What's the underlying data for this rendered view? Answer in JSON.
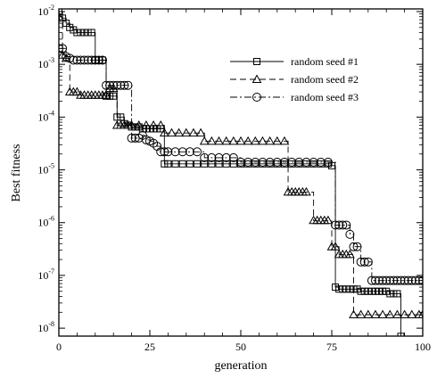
{
  "chart_data": {
    "type": "line",
    "xlabel": "generation",
    "ylabel": "Best fitness",
    "xlim": [
      0,
      100
    ],
    "ylim_log10": [
      -8.15,
      -1.95
    ],
    "y_scale": "log",
    "x_ticks": [
      0,
      25,
      50,
      75,
      100
    ],
    "x_tick_labels": [
      "0",
      "25",
      "50",
      "75",
      "100"
    ],
    "y_ticks_exponent": [
      -8,
      -7,
      -6,
      -5,
      -4,
      -3,
      -2
    ],
    "y_tick_labels": [
      {
        "base": "10",
        "exp": "-8"
      },
      {
        "base": "10",
        "exp": "-7"
      },
      {
        "base": "10",
        "exp": "-6"
      },
      {
        "base": "10",
        "exp": "-5"
      },
      {
        "base": "10",
        "exp": "-4"
      },
      {
        "base": "10",
        "exp": "-3"
      },
      {
        "base": "10",
        "exp": "-2"
      }
    ],
    "legend_position": "top-right",
    "series": [
      {
        "name": "random seed #1",
        "marker": "square",
        "dash": "solid",
        "points": [
          [
            0,
            0.01
          ],
          [
            1,
            0.0075
          ],
          [
            2,
            0.006
          ],
          [
            3,
            0.005
          ],
          [
            4,
            0.0045
          ],
          [
            5,
            0.004
          ],
          [
            6,
            0.004
          ],
          [
            7,
            0.004
          ],
          [
            8,
            0.004
          ],
          [
            9,
            0.004
          ],
          [
            10,
            0.0012
          ],
          [
            11,
            0.0012
          ],
          [
            12,
            0.0012
          ],
          [
            13,
            0.00025
          ],
          [
            14,
            0.00025
          ],
          [
            15,
            0.00025
          ],
          [
            16,
            0.0001
          ],
          [
            17,
            0.0001
          ],
          [
            18,
            7.5e-05
          ],
          [
            19,
            7e-05
          ],
          [
            20,
            6.5e-05
          ],
          [
            21,
            6.5e-05
          ],
          [
            22,
            6.5e-05
          ],
          [
            23,
            6e-05
          ],
          [
            24,
            6e-05
          ],
          [
            25,
            6e-05
          ],
          [
            26,
            6e-05
          ],
          [
            27,
            6e-05
          ],
          [
            28,
            6e-05
          ],
          [
            29,
            1.3e-05
          ],
          [
            30,
            1.3e-05
          ],
          [
            32,
            1.3e-05
          ],
          [
            34,
            1.3e-05
          ],
          [
            36,
            1.3e-05
          ],
          [
            38,
            1.3e-05
          ],
          [
            40,
            1.3e-05
          ],
          [
            42,
            1.3e-05
          ],
          [
            44,
            1.3e-05
          ],
          [
            46,
            1.3e-05
          ],
          [
            48,
            1.3e-05
          ],
          [
            50,
            1.3e-05
          ],
          [
            52,
            1.3e-05
          ],
          [
            54,
            1.3e-05
          ],
          [
            56,
            1.3e-05
          ],
          [
            58,
            1.3e-05
          ],
          [
            60,
            1.3e-05
          ],
          [
            62,
            1.3e-05
          ],
          [
            64,
            1.3e-05
          ],
          [
            66,
            1.3e-05
          ],
          [
            68,
            1.3e-05
          ],
          [
            70,
            1.3e-05
          ],
          [
            72,
            1.3e-05
          ],
          [
            74,
            1.3e-05
          ],
          [
            75,
            1.2e-05
          ],
          [
            76,
            6e-08
          ],
          [
            77,
            5.5e-08
          ],
          [
            78,
            5.5e-08
          ],
          [
            79,
            5.5e-08
          ],
          [
            80,
            5.5e-08
          ],
          [
            81,
            5.5e-08
          ],
          [
            82,
            5.5e-08
          ],
          [
            83,
            5e-08
          ],
          [
            84,
            5e-08
          ],
          [
            85,
            5e-08
          ],
          [
            86,
            5e-08
          ],
          [
            87,
            5e-08
          ],
          [
            88,
            5e-08
          ],
          [
            89,
            5e-08
          ],
          [
            90,
            5e-08
          ],
          [
            91,
            4.5e-08
          ],
          [
            92,
            4.5e-08
          ],
          [
            93,
            4.5e-08
          ],
          [
            94,
            7e-09
          ]
        ]
      },
      {
        "name": "random seed #2",
        "marker": "triangle",
        "dash": "dashed",
        "points": [
          [
            0,
            0.008
          ],
          [
            1,
            0.0015
          ],
          [
            2,
            0.0013
          ],
          [
            3,
            0.0003
          ],
          [
            4,
            0.0003
          ],
          [
            5,
            0.0003
          ],
          [
            6,
            0.00026
          ],
          [
            7,
            0.00026
          ],
          [
            8,
            0.00026
          ],
          [
            9,
            0.00026
          ],
          [
            10,
            0.00026
          ],
          [
            11,
            0.00026
          ],
          [
            12,
            0.00026
          ],
          [
            13,
            0.00026
          ],
          [
            14,
            0.00035
          ],
          [
            15,
            0.00035
          ],
          [
            16,
            7e-05
          ],
          [
            17,
            7e-05
          ],
          [
            18,
            7e-05
          ],
          [
            19,
            7e-05
          ],
          [
            20,
            7e-05
          ],
          [
            22,
            7e-05
          ],
          [
            24,
            7e-05
          ],
          [
            26,
            7e-05
          ],
          [
            28,
            7e-05
          ],
          [
            29,
            5e-05
          ],
          [
            31,
            5e-05
          ],
          [
            33,
            5e-05
          ],
          [
            35,
            5e-05
          ],
          [
            37,
            5e-05
          ],
          [
            39,
            5e-05
          ],
          [
            40,
            3.5e-05
          ],
          [
            42,
            3.5e-05
          ],
          [
            44,
            3.5e-05
          ],
          [
            46,
            3.5e-05
          ],
          [
            48,
            3.5e-05
          ],
          [
            50,
            3.5e-05
          ],
          [
            52,
            3.5e-05
          ],
          [
            54,
            3.5e-05
          ],
          [
            56,
            3.5e-05
          ],
          [
            58,
            3.5e-05
          ],
          [
            60,
            3.5e-05
          ],
          [
            62,
            3.5e-05
          ],
          [
            63,
            3.8e-06
          ],
          [
            64,
            3.8e-06
          ],
          [
            65,
            3.8e-06
          ],
          [
            66,
            3.8e-06
          ],
          [
            67,
            3.8e-06
          ],
          [
            68,
            3.8e-06
          ],
          [
            70,
            1.1e-06
          ],
          [
            71,
            1.1e-06
          ],
          [
            72,
            1.1e-06
          ],
          [
            73,
            1.1e-06
          ],
          [
            74,
            1.1e-06
          ],
          [
            75,
            3.5e-07
          ],
          [
            76,
            3.5e-07
          ],
          [
            77,
            2.5e-07
          ],
          [
            78,
            2.5e-07
          ],
          [
            79,
            2.5e-07
          ],
          [
            80,
            2.5e-07
          ],
          [
            81,
            1.8e-08
          ],
          [
            83,
            1.8e-08
          ],
          [
            85,
            1.8e-08
          ],
          [
            87,
            1.8e-08
          ],
          [
            89,
            1.8e-08
          ],
          [
            91,
            1.8e-08
          ],
          [
            93,
            1.8e-08
          ],
          [
            95,
            1.8e-08
          ],
          [
            97,
            1.8e-08
          ],
          [
            99,
            1.8e-08
          ],
          [
            100,
            1.8e-08
          ]
        ]
      },
      {
        "name": "random seed #3",
        "marker": "circle",
        "dash": "dashdot",
        "points": [
          [
            0,
            0.002
          ],
          [
            1,
            0.002
          ],
          [
            2,
            0.0014
          ],
          [
            3,
            0.0013
          ],
          [
            4,
            0.0012
          ],
          [
            5,
            0.0012
          ],
          [
            6,
            0.0012
          ],
          [
            7,
            0.0012
          ],
          [
            8,
            0.0012
          ],
          [
            9,
            0.0012
          ],
          [
            10,
            0.0012
          ],
          [
            11,
            0.0012
          ],
          [
            12,
            0.0012
          ],
          [
            13,
            0.0004
          ],
          [
            14,
            0.0004
          ],
          [
            15,
            0.0004
          ],
          [
            16,
            0.0004
          ],
          [
            17,
            0.0004
          ],
          [
            18,
            0.0004
          ],
          [
            19,
            0.0004
          ],
          [
            20,
            4e-05
          ],
          [
            21,
            4e-05
          ],
          [
            22,
            4e-05
          ],
          [
            23,
            4.5e-05
          ],
          [
            24,
            3.7e-05
          ],
          [
            25,
            3.5e-05
          ],
          [
            26,
            3.2e-05
          ],
          [
            27,
            2.8e-05
          ],
          [
            28,
            2.2e-05
          ],
          [
            29,
            2.2e-05
          ],
          [
            30,
            2.2e-05
          ],
          [
            32,
            2.2e-05
          ],
          [
            34,
            2.2e-05
          ],
          [
            36,
            2.2e-05
          ],
          [
            38,
            2.2e-05
          ],
          [
            40,
            1.7e-05
          ],
          [
            42,
            1.7e-05
          ],
          [
            44,
            1.7e-05
          ],
          [
            46,
            1.7e-05
          ],
          [
            48,
            1.7e-05
          ],
          [
            50,
            1.4e-05
          ],
          [
            52,
            1.4e-05
          ],
          [
            54,
            1.4e-05
          ],
          [
            56,
            1.4e-05
          ],
          [
            58,
            1.4e-05
          ],
          [
            60,
            1.4e-05
          ],
          [
            62,
            1.4e-05
          ],
          [
            64,
            1.4e-05
          ],
          [
            66,
            1.4e-05
          ],
          [
            68,
            1.4e-05
          ],
          [
            70,
            1.4e-05
          ],
          [
            72,
            1.4e-05
          ],
          [
            74,
            1.4e-05
          ],
          [
            76,
            9e-07
          ],
          [
            77,
            9e-07
          ],
          [
            78,
            9e-07
          ],
          [
            79,
            9e-07
          ],
          [
            80,
            6e-07
          ],
          [
            81,
            3.5e-07
          ],
          [
            82,
            3.5e-07
          ],
          [
            83,
            1.8e-07
          ],
          [
            84,
            1.8e-07
          ],
          [
            85,
            1.8e-07
          ],
          [
            86,
            8e-08
          ],
          [
            87,
            8e-08
          ],
          [
            88,
            8e-08
          ],
          [
            89,
            8e-08
          ],
          [
            90,
            8e-08
          ],
          [
            91,
            8e-08
          ],
          [
            92,
            8e-08
          ],
          [
            93,
            8e-08
          ],
          [
            94,
            8e-08
          ],
          [
            95,
            8e-08
          ],
          [
            96,
            8e-08
          ],
          [
            97,
            8e-08
          ],
          [
            98,
            8e-08
          ],
          [
            99,
            8e-08
          ],
          [
            100,
            8e-08
          ]
        ]
      }
    ]
  }
}
